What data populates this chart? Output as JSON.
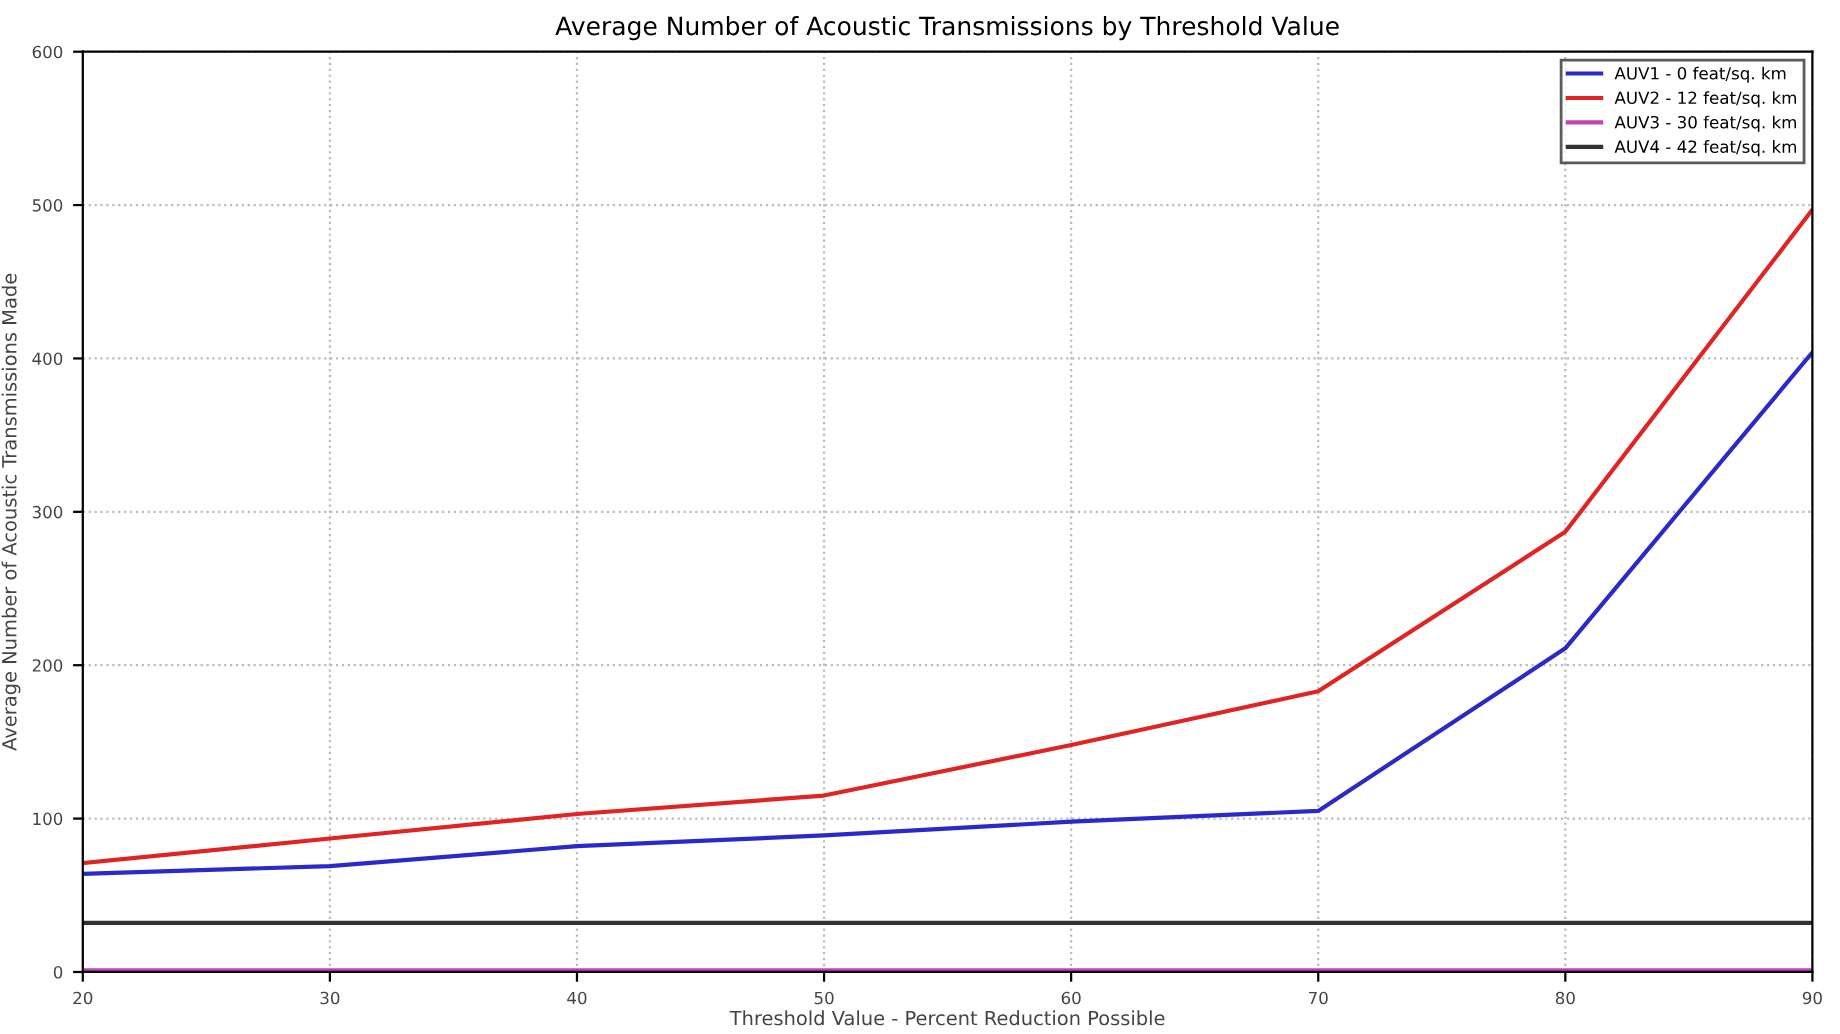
{
  "chart_data": {
    "type": "line",
    "title": "Average Number of Acoustic Transmissions by Threshold Value",
    "xlabel": "Threshold Value - Percent Reduction Possible",
    "ylabel": "Average Number of Acoustic Transmissions Made",
    "x": [
      20,
      30,
      40,
      50,
      60,
      70,
      80,
      90
    ],
    "series": [
      {
        "name": "AUV1 - 0 feat/sq. km",
        "color": "#2a2ac8",
        "values": [
          64,
          69,
          82,
          89,
          98,
          105,
          211,
          404
        ]
      },
      {
        "name": "AUV2 - 12 feat/sq. km",
        "color": "#e02424",
        "values": [
          71,
          87,
          103,
          115,
          148,
          183,
          287,
          497
        ]
      },
      {
        "name": "AUV3 - 30 feat/sq. km",
        "color": "#c040c0",
        "values": [
          1,
          1,
          1,
          1,
          1,
          1,
          1,
          1
        ]
      },
      {
        "name": "AUV4 - 42 feat/sq. km",
        "color": "#333333",
        "values": [
          32,
          32,
          32,
          32,
          32,
          32,
          32,
          32
        ]
      }
    ],
    "xlim": [
      20,
      90
    ],
    "ylim": [
      0,
      600
    ],
    "xticks": [
      20,
      30,
      40,
      50,
      60,
      70,
      80,
      90
    ],
    "yticks": [
      0,
      100,
      200,
      300,
      400,
      500,
      600
    ],
    "grid": true,
    "legend": "top right",
    "marker": "none",
    "line_style": "solid"
  }
}
